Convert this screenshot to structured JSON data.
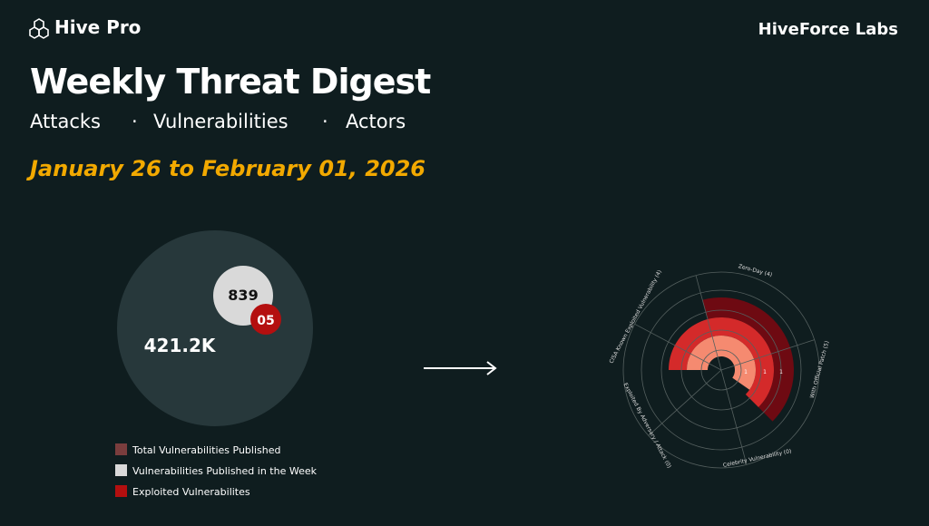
{
  "header": {
    "logo": "Hive Pro",
    "brand": "HiveForce Labs"
  },
  "title": "Weekly Threat Digest",
  "topics": [
    "Attacks",
    "Vulnerabilities",
    "Actors"
  ],
  "date_range": "January 26 to February 01, 2026",
  "summary": {
    "total": "421.2K",
    "week": "839",
    "exploited": "05",
    "legend": [
      "Total Vulnerabilities Published",
      "Vulnerabilities Published in the Week",
      "Exploited Vulnerabilites"
    ]
  },
  "radial": {
    "categories": [
      "Zero-Day (4)",
      "With Official Patch (5)",
      "Celebrity Vulnerability (0)",
      "Exploited By Adversary / Attack (0)",
      "CISA Known Exploited Vulnerability (4)"
    ],
    "segment_labels": [
      "1",
      "1",
      "1"
    ]
  }
}
